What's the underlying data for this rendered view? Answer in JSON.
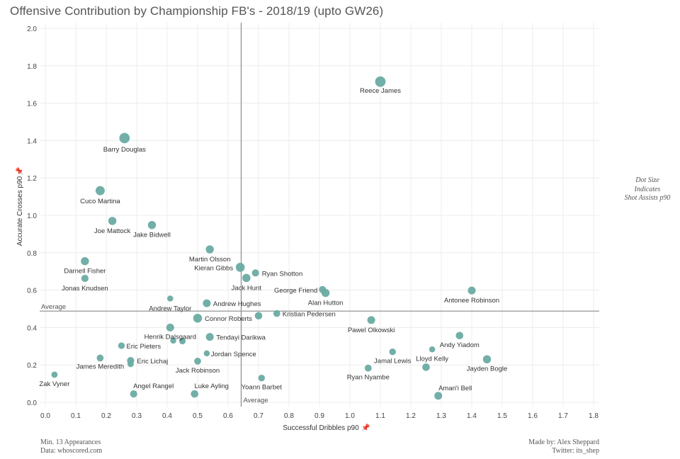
{
  "title": "Offensive Contribution by Championship FB's - 2018/19 (upto GW26)",
  "dot_size_note": [
    "Dot Size",
    "Indicates",
    "Shot Assists p90"
  ],
  "footer_left": [
    "Min. 13 Appearances",
    "Data: whoscored.com"
  ],
  "footer_right": [
    "Made by: Alex Sheppard",
    "Twitter: its_shep"
  ],
  "colors": {
    "dot": "#6aaba3",
    "grid": "#ececec",
    "refline": "#8a8a8a",
    "text": "#444444"
  },
  "chart_data": {
    "type": "scatter",
    "xlabel": "Successful Dribbles p90",
    "ylabel": "Accurate Crosses p90",
    "xlim": [
      0,
      1.8
    ],
    "ylim": [
      0,
      2.0
    ],
    "xticks": [
      "0.0",
      "0.1",
      "0.2",
      "0.3",
      "0.4",
      "0.5",
      "0.6",
      "0.7",
      "0.8",
      "0.9",
      "1.0",
      "1.1",
      "1.2",
      "1.3",
      "1.4",
      "1.5",
      "1.6",
      "1.7",
      "1.8"
    ],
    "yticks": [
      "0.0",
      "0.2",
      "0.4",
      "0.6",
      "0.8",
      "1.0",
      "1.2",
      "1.4",
      "1.6",
      "1.8",
      "2.0"
    ],
    "x_average": 0.643,
    "y_average": 0.488,
    "x_average_label": "Average",
    "y_average_label": "Average",
    "points": [
      {
        "name": "Reece James",
        "x": 1.1,
        "y": 1.715,
        "size": 1.0,
        "label": "Reece James"
      },
      {
        "name": "Barry Douglas",
        "x": 0.26,
        "y": 1.413,
        "size": 0.98,
        "label": "Barry Douglas"
      },
      {
        "name": "Cuco Martina",
        "x": 0.18,
        "y": 1.132,
        "size": 0.78,
        "label": "Cuco Martina"
      },
      {
        "name": "Joe Mattock",
        "x": 0.22,
        "y": 0.97,
        "size": 0.6,
        "label": "Joe Mattock"
      },
      {
        "name": "Jake Bidwell",
        "x": 0.35,
        "y": 0.948,
        "size": 0.6,
        "label": "Jake Bidwell"
      },
      {
        "name": "Martin Olsson",
        "x": 0.54,
        "y": 0.818,
        "size": 0.6,
        "label": "Martin Olsson"
      },
      {
        "name": "Darnell Fisher",
        "x": 0.13,
        "y": 0.755,
        "size": 0.6,
        "label": "Darnell Fisher"
      },
      {
        "name": "Kieran Gibbs",
        "x": 0.64,
        "y": 0.722,
        "size": 0.75,
        "label": "Kieran Gibbs"
      },
      {
        "name": "Ryan Shotton",
        "x": 0.69,
        "y": 0.692,
        "size": 0.45,
        "label": "Ryan Shotton"
      },
      {
        "name": "Jack Hunt",
        "x": 0.66,
        "y": 0.665,
        "size": 0.62,
        "label": "Jack Hunt"
      },
      {
        "name": "Jonas Knudsen",
        "x": 0.13,
        "y": 0.663,
        "size": 0.45,
        "label": "Jonas Knudsen"
      },
      {
        "name": "George Friend",
        "x": 0.91,
        "y": 0.603,
        "size": 0.45,
        "label": "George Friend"
      },
      {
        "name": "Alan Hutton",
        "x": 0.92,
        "y": 0.585,
        "size": 0.6,
        "label": "Alan Hutton"
      },
      {
        "name": "Antonee Robinson",
        "x": 1.4,
        "y": 0.598,
        "size": 0.55,
        "label": "Antonee Robinson"
      },
      {
        "name": "Andrew Taylor",
        "x": 0.41,
        "y": 0.555,
        "size": 0.25,
        "label": "Andrew Taylor"
      },
      {
        "name": "Andrew Hughes",
        "x": 0.53,
        "y": 0.53,
        "size": 0.55,
        "label": "Andrew Hughes"
      },
      {
        "name": "Kristian Pedersen",
        "x": 0.76,
        "y": 0.475,
        "size": 0.4,
        "label": "Kristian Pedersen"
      },
      {
        "name": "Unlabelled 1",
        "x": 0.7,
        "y": 0.463,
        "size": 0.5,
        "label": ""
      },
      {
        "name": "Connor Roberts",
        "x": 0.5,
        "y": 0.45,
        "size": 0.72,
        "label": "Connor Roberts"
      },
      {
        "name": "Pawel Olkowski",
        "x": 1.07,
        "y": 0.44,
        "size": 0.55,
        "label": "Pawel Olkowski"
      },
      {
        "name": "Henrik Dalsgaard",
        "x": 0.41,
        "y": 0.4,
        "size": 0.55,
        "label": "Henrik Dalsgaard"
      },
      {
        "name": "Tendayi Darikwa",
        "x": 0.54,
        "y": 0.35,
        "size": 0.55,
        "label": "Tendayi Darikwa"
      },
      {
        "name": "Andy Yiadom",
        "x": 1.36,
        "y": 0.357,
        "size": 0.5,
        "label": "Andy Yiadom"
      },
      {
        "name": "Unlabelled 2",
        "x": 0.42,
        "y": 0.33,
        "size": 0.25,
        "label": ""
      },
      {
        "name": "Unlabelled 3",
        "x": 0.45,
        "y": 0.328,
        "size": 0.35,
        "label": ""
      },
      {
        "name": "Eric Pieters",
        "x": 0.25,
        "y": 0.303,
        "size": 0.35,
        "label": "Eric Pieters"
      },
      {
        "name": "Lloyd Kelly",
        "x": 1.27,
        "y": 0.283,
        "size": 0.25,
        "label": "Lloyd Kelly"
      },
      {
        "name": "Jamal Lewis",
        "x": 1.14,
        "y": 0.27,
        "size": 0.35,
        "label": "Jamal Lewis"
      },
      {
        "name": "Jordan Spence",
        "x": 0.53,
        "y": 0.262,
        "size": 0.25,
        "label": "Jordan Spence"
      },
      {
        "name": "James Meredith",
        "x": 0.18,
        "y": 0.237,
        "size": 0.4,
        "label": "James Meredith"
      },
      {
        "name": "Jayden Bogle",
        "x": 1.45,
        "y": 0.23,
        "size": 0.6,
        "label": "Jayden Bogle"
      },
      {
        "name": "Eric Lichaj",
        "x": 0.28,
        "y": 0.223,
        "size": 0.45,
        "label": "Eric Lichaj"
      },
      {
        "name": "Jack Robinson",
        "x": 0.5,
        "y": 0.22,
        "size": 0.4,
        "label": "Jack Robinson"
      },
      {
        "name": "Unlabelled 4",
        "x": 0.28,
        "y": 0.205,
        "size": 0.3,
        "label": ""
      },
      {
        "name": "Lloyd Kelly 2",
        "x": 1.25,
        "y": 0.188,
        "size": 0.5,
        "label": ""
      },
      {
        "name": "Ryan Nyambe",
        "x": 1.06,
        "y": 0.183,
        "size": 0.4,
        "label": "Ryan Nyambe"
      },
      {
        "name": "Zak Vyner",
        "x": 0.03,
        "y": 0.148,
        "size": 0.3,
        "label": "Zak Vyner"
      },
      {
        "name": "Yoann Barbet",
        "x": 0.71,
        "y": 0.13,
        "size": 0.35,
        "label": "Yoann Barbet"
      },
      {
        "name": "Angel Rangel",
        "x": 0.29,
        "y": 0.045,
        "size": 0.45,
        "label": "Angel Rangel"
      },
      {
        "name": "Luke Ayling",
        "x": 0.49,
        "y": 0.045,
        "size": 0.5,
        "label": "Luke Ayling"
      },
      {
        "name": "Amari'i Bell",
        "x": 1.29,
        "y": 0.035,
        "size": 0.55,
        "label": "Amari'i Bell"
      }
    ]
  }
}
